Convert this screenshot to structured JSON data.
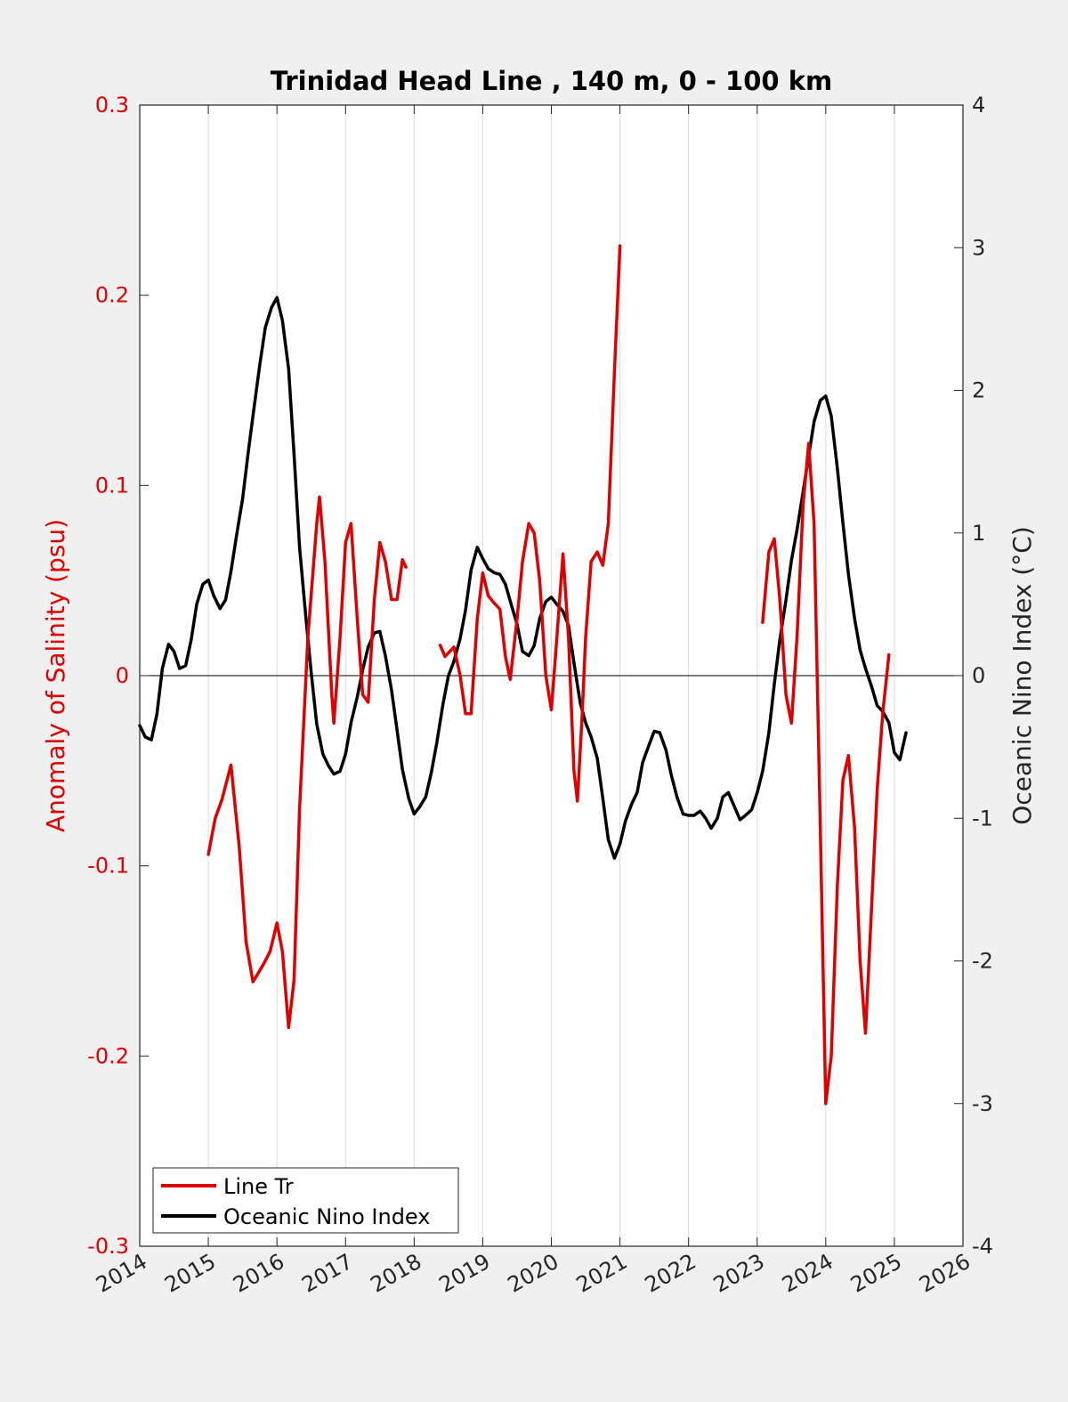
{
  "chart_data": {
    "type": "line",
    "title": "Trinidad Head Line , 140 m, 0 - 100 km",
    "ylabel_left": "Anomaly of Salinity (psu)",
    "ylabel_right": "Oceanic Nino Index (°C)",
    "xlim": [
      2014,
      2026
    ],
    "ylim_left": [
      -0.3,
      0.3
    ],
    "ylim_right": [
      -4,
      4
    ],
    "x_ticks": [
      "2014",
      "2015",
      "2016",
      "2017",
      "2018",
      "2019",
      "2020",
      "2021",
      "2022",
      "2023",
      "2024",
      "2025",
      "2026"
    ],
    "y_left_ticks": [
      "-0.3",
      "-0.2",
      "-0.1",
      "0",
      "0.1",
      "0.2",
      "0.3"
    ],
    "y_right_ticks": [
      "-4",
      "-3",
      "-2",
      "-1",
      "0",
      "1",
      "2",
      "3",
      "4"
    ],
    "grid": "vertical",
    "legend_position": "bottom-left",
    "colors": {
      "salinity": "#e00000",
      "oni": "#000000",
      "zero_line": "#000000",
      "grid": "#dcdcdc"
    },
    "series": [
      {
        "name": "Line Tr",
        "axis": "left",
        "segments": [
          [
            [
              2015.0,
              -0.094
            ],
            [
              2015.1,
              -0.075
            ],
            [
              2015.2,
              -0.065
            ],
            [
              2015.33,
              -0.047
            ],
            [
              2015.45,
              -0.09
            ],
            [
              2015.55,
              -0.14
            ],
            [
              2015.65,
              -0.161
            ],
            [
              2015.8,
              -0.152
            ],
            [
              2015.9,
              -0.145
            ],
            [
              2016.0,
              -0.13
            ],
            [
              2016.08,
              -0.145
            ],
            [
              2016.17,
              -0.185
            ],
            [
              2016.25,
              -0.16
            ],
            [
              2016.33,
              -0.07
            ],
            [
              2016.45,
              0.02
            ],
            [
              2016.58,
              0.08
            ],
            [
              2016.62,
              0.094
            ],
            [
              2016.7,
              0.06
            ],
            [
              2016.8,
              -0.01
            ],
            [
              2016.83,
              -0.025
            ],
            [
              2016.92,
              0.02
            ],
            [
              2017.0,
              0.07
            ],
            [
              2017.08,
              0.08
            ],
            [
              2017.17,
              0.03
            ],
            [
              2017.25,
              -0.01
            ],
            [
              2017.33,
              -0.014
            ],
            [
              2017.42,
              0.04
            ],
            [
              2017.5,
              0.07
            ],
            [
              2017.58,
              0.06
            ],
            [
              2017.67,
              0.04
            ],
            [
              2017.75,
              0.04
            ],
            [
              2017.83,
              0.061
            ],
            [
              2017.88,
              0.057
            ]
          ],
          [
            [
              2018.38,
              0.016
            ],
            [
              2018.45,
              0.01
            ],
            [
              2018.58,
              0.015
            ],
            [
              2018.67,
              0.0
            ],
            [
              2018.75,
              -0.02
            ],
            [
              2018.83,
              -0.02
            ],
            [
              2018.92,
              0.03
            ],
            [
              2019.0,
              0.054
            ],
            [
              2019.08,
              0.042
            ],
            [
              2019.17,
              0.038
            ],
            [
              2019.25,
              0.035
            ],
            [
              2019.33,
              0.01
            ],
            [
              2019.4,
              -0.002
            ],
            [
              2019.5,
              0.03
            ],
            [
              2019.58,
              0.06
            ],
            [
              2019.67,
              0.08
            ],
            [
              2019.75,
              0.075
            ],
            [
              2019.83,
              0.05
            ],
            [
              2019.92,
              0.0
            ],
            [
              2020.0,
              -0.018
            ],
            [
              2020.08,
              0.02
            ],
            [
              2020.17,
              0.064
            ],
            [
              2020.25,
              0.02
            ],
            [
              2020.33,
              -0.05
            ],
            [
              2020.38,
              -0.066
            ],
            [
              2020.45,
              -0.02
            ],
            [
              2020.5,
              0.02
            ],
            [
              2020.58,
              0.06
            ],
            [
              2020.67,
              0.065
            ],
            [
              2020.75,
              0.058
            ],
            [
              2020.83,
              0.08
            ],
            [
              2020.92,
              0.16
            ],
            [
              2021.0,
              0.226
            ]
          ],
          [
            [
              2023.08,
              0.028
            ],
            [
              2023.17,
              0.065
            ],
            [
              2023.25,
              0.072
            ],
            [
              2023.33,
              0.04
            ],
            [
              2023.42,
              -0.01
            ],
            [
              2023.5,
              -0.025
            ],
            [
              2023.58,
              0.02
            ],
            [
              2023.67,
              0.09
            ],
            [
              2023.75,
              0.122
            ],
            [
              2023.83,
              0.08
            ],
            [
              2023.92,
              -0.08
            ],
            [
              2024.0,
              -0.225
            ],
            [
              2024.08,
              -0.2
            ],
            [
              2024.17,
              -0.11
            ],
            [
              2024.25,
              -0.055
            ],
            [
              2024.33,
              -0.042
            ],
            [
              2024.42,
              -0.08
            ],
            [
              2024.5,
              -0.15
            ],
            [
              2024.58,
              -0.188
            ],
            [
              2024.67,
              -0.12
            ],
            [
              2024.75,
              -0.06
            ],
            [
              2024.83,
              -0.02
            ],
            [
              2024.92,
              0.011
            ]
          ]
        ]
      },
      {
        "name": "Oceanic Nino Index",
        "axis": "right",
        "segments": [
          [
            [
              2014.0,
              -0.35
            ],
            [
              2014.08,
              -0.43
            ],
            [
              2014.17,
              -0.45
            ],
            [
              2014.25,
              -0.27
            ],
            [
              2014.33,
              0.05
            ],
            [
              2014.42,
              0.22
            ],
            [
              2014.5,
              0.17
            ],
            [
              2014.58,
              0.05
            ],
            [
              2014.67,
              0.07
            ],
            [
              2014.75,
              0.25
            ],
            [
              2014.83,
              0.5
            ],
            [
              2014.92,
              0.64
            ],
            [
              2015.0,
              0.67
            ],
            [
              2015.08,
              0.56
            ],
            [
              2015.17,
              0.47
            ],
            [
              2015.25,
              0.53
            ],
            [
              2015.33,
              0.73
            ],
            [
              2015.42,
              1.01
            ],
            [
              2015.5,
              1.24
            ],
            [
              2015.58,
              1.56
            ],
            [
              2015.67,
              1.89
            ],
            [
              2015.75,
              2.18
            ],
            [
              2015.83,
              2.44
            ],
            [
              2015.92,
              2.58
            ],
            [
              2016.0,
              2.65
            ],
            [
              2016.08,
              2.49
            ],
            [
              2016.17,
              2.15
            ],
            [
              2016.25,
              1.55
            ],
            [
              2016.33,
              0.9
            ],
            [
              2016.42,
              0.42
            ],
            [
              2016.5,
              0.02
            ],
            [
              2016.58,
              -0.34
            ],
            [
              2016.67,
              -0.55
            ],
            [
              2016.75,
              -0.63
            ],
            [
              2016.83,
              -0.69
            ],
            [
              2016.92,
              -0.67
            ],
            [
              2017.0,
              -0.55
            ],
            [
              2017.08,
              -0.33
            ],
            [
              2017.17,
              -0.15
            ],
            [
              2017.25,
              0.04
            ],
            [
              2017.33,
              0.2
            ],
            [
              2017.42,
              0.3
            ],
            [
              2017.5,
              0.31
            ],
            [
              2017.58,
              0.14
            ],
            [
              2017.67,
              -0.1
            ],
            [
              2017.75,
              -0.38
            ],
            [
              2017.83,
              -0.66
            ],
            [
              2017.92,
              -0.86
            ],
            [
              2018.0,
              -0.97
            ],
            [
              2018.08,
              -0.92
            ],
            [
              2018.17,
              -0.85
            ],
            [
              2018.25,
              -0.68
            ],
            [
              2018.33,
              -0.47
            ],
            [
              2018.42,
              -0.2
            ],
            [
              2018.5,
              0.0
            ],
            [
              2018.58,
              0.1
            ],
            [
              2018.67,
              0.26
            ],
            [
              2018.75,
              0.46
            ],
            [
              2018.83,
              0.74
            ],
            [
              2018.92,
              0.9
            ],
            [
              2019.0,
              0.82
            ],
            [
              2019.08,
              0.75
            ],
            [
              2019.17,
              0.72
            ],
            [
              2019.25,
              0.71
            ],
            [
              2019.33,
              0.64
            ],
            [
              2019.42,
              0.49
            ],
            [
              2019.5,
              0.36
            ],
            [
              2019.58,
              0.17
            ],
            [
              2019.67,
              0.14
            ],
            [
              2019.75,
              0.21
            ],
            [
              2019.83,
              0.4
            ],
            [
              2019.92,
              0.52
            ],
            [
              2020.0,
              0.55
            ],
            [
              2020.08,
              0.5
            ],
            [
              2020.17,
              0.45
            ],
            [
              2020.25,
              0.35
            ],
            [
              2020.33,
              0.09
            ],
            [
              2020.42,
              -0.19
            ],
            [
              2020.5,
              -0.33
            ],
            [
              2020.58,
              -0.43
            ],
            [
              2020.67,
              -0.58
            ],
            [
              2020.75,
              -0.86
            ],
            [
              2020.83,
              -1.15
            ],
            [
              2020.92,
              -1.28
            ],
            [
              2021.0,
              -1.18
            ],
            [
              2021.08,
              -1.02
            ],
            [
              2021.17,
              -0.9
            ],
            [
              2021.25,
              -0.82
            ],
            [
              2021.33,
              -0.61
            ],
            [
              2021.42,
              -0.49
            ],
            [
              2021.5,
              -0.39
            ],
            [
              2021.58,
              -0.4
            ],
            [
              2021.67,
              -0.52
            ],
            [
              2021.75,
              -0.7
            ],
            [
              2021.83,
              -0.85
            ],
            [
              2021.92,
              -0.97
            ],
            [
              2022.0,
              -0.98
            ],
            [
              2022.08,
              -0.98
            ],
            [
              2022.17,
              -0.95
            ],
            [
              2022.25,
              -1.0
            ],
            [
              2022.33,
              -1.07
            ],
            [
              2022.42,
              -1.0
            ],
            [
              2022.5,
              -0.85
            ],
            [
              2022.58,
              -0.82
            ],
            [
              2022.67,
              -0.92
            ],
            [
              2022.75,
              -1.01
            ],
            [
              2022.83,
              -0.98
            ],
            [
              2022.92,
              -0.94
            ],
            [
              2023.0,
              -0.82
            ],
            [
              2023.08,
              -0.67
            ],
            [
              2023.17,
              -0.4
            ],
            [
              2023.25,
              -0.06
            ],
            [
              2023.33,
              0.25
            ],
            [
              2023.42,
              0.53
            ],
            [
              2023.5,
              0.81
            ],
            [
              2023.58,
              1.02
            ],
            [
              2023.67,
              1.29
            ],
            [
              2023.75,
              1.54
            ],
            [
              2023.83,
              1.78
            ],
            [
              2023.92,
              1.93
            ],
            [
              2024.0,
              1.96
            ],
            [
              2024.08,
              1.82
            ],
            [
              2024.17,
              1.45
            ],
            [
              2024.25,
              1.07
            ],
            [
              2024.33,
              0.71
            ],
            [
              2024.42,
              0.4
            ],
            [
              2024.5,
              0.18
            ],
            [
              2024.58,
              0.05
            ],
            [
              2024.67,
              -0.08
            ],
            [
              2024.75,
              -0.21
            ],
            [
              2024.83,
              -0.25
            ],
            [
              2024.92,
              -0.33
            ],
            [
              2025.0,
              -0.54
            ],
            [
              2025.08,
              -0.59
            ],
            [
              2025.17,
              -0.4
            ]
          ]
        ]
      }
    ]
  },
  "legend": {
    "items": [
      {
        "label": "Line Tr",
        "color": "#e00000"
      },
      {
        "label": "Oceanic Nino Index",
        "color": "#000000"
      }
    ]
  }
}
